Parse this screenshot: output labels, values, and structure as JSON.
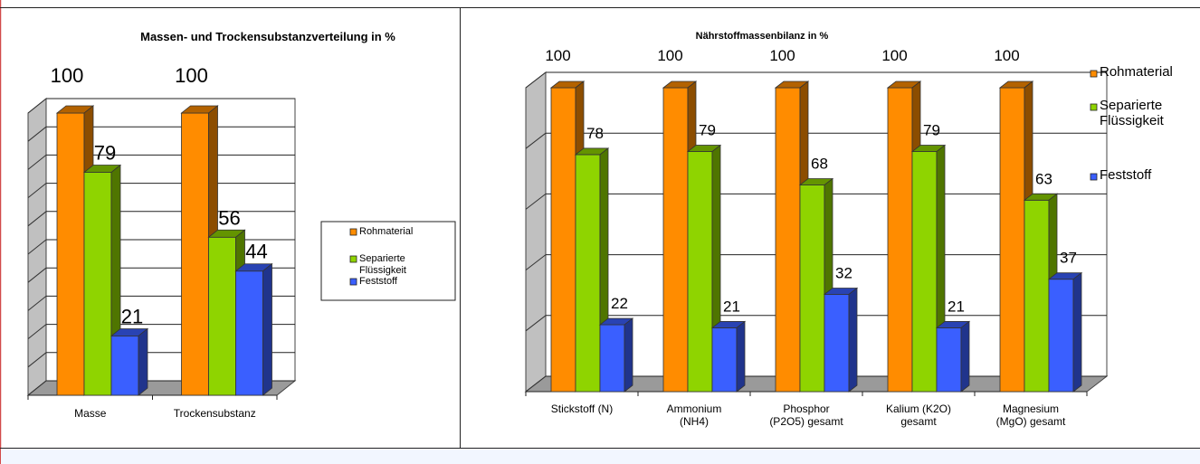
{
  "chart_data": [
    {
      "type": "bar",
      "title": "Massen- und Trockensubstanzverteilung in %",
      "categories": [
        "Masse",
        "Trockensubstanz"
      ],
      "series": [
        {
          "name": "Rohmaterial",
          "values": [
            100,
            100
          ]
        },
        {
          "name": "Separierte Flüssigkeit",
          "values": [
            79,
            56
          ]
        },
        {
          "name": "Feststoff",
          "values": [
            21,
            44
          ]
        }
      ],
      "ylim": [
        0,
        100
      ],
      "grid": true,
      "legend": "right",
      "colors": [
        "#ff8c00",
        "#8fd400",
        "#3a5fff"
      ]
    },
    {
      "type": "bar",
      "title": "Nährstoffmassenbilanz in %",
      "categories": [
        "Stickstoff (N)",
        "Ammonium (NH4)",
        "Phosphor (P2O5) gesamt",
        "Kalium (K2O) gesamt",
        "Magnesium (MgO) gesamt"
      ],
      "series": [
        {
          "name": "Rohmaterial",
          "values": [
            100,
            100,
            100,
            100,
            100
          ]
        },
        {
          "name": "Separierte Flüssigkeit",
          "values": [
            78,
            79,
            68,
            79,
            63
          ]
        },
        {
          "name": "Feststoff",
          "values": [
            22,
            21,
            32,
            21,
            37
          ]
        }
      ],
      "ylim": [
        0,
        100
      ],
      "grid": true,
      "legend": "right",
      "colors": [
        "#ff8c00",
        "#8fd400",
        "#3a5fff"
      ]
    }
  ],
  "left_legend": {
    "items": [
      "Rohmaterial",
      "Separierte Flüssigkeit",
      "Feststoff"
    ],
    "lines": [
      [
        "Rohmaterial"
      ],
      [
        "Separierte",
        "Flüssigkeit"
      ],
      [
        "Feststoff"
      ]
    ]
  },
  "right_legend": {
    "items": [
      "Rohmaterial",
      "Separierte Flüssigkeit",
      "Feststoff"
    ],
    "lines": [
      [
        "Rohmaterial"
      ],
      [
        "Separierte",
        "Flüssigkeit"
      ],
      [
        "Feststoff"
      ]
    ]
  },
  "left_category_lines": [
    [
      "Masse"
    ],
    [
      "Trockensubstanz"
    ]
  ],
  "right_category_lines": [
    [
      "Stickstoff (N)"
    ],
    [
      "Ammonium",
      "(NH4)"
    ],
    [
      "Phosphor",
      "(P2O5) gesamt"
    ],
    [
      "Kalium (K2O)",
      "gesamt"
    ],
    [
      "Magnesium",
      "(MgO) gesamt"
    ]
  ]
}
